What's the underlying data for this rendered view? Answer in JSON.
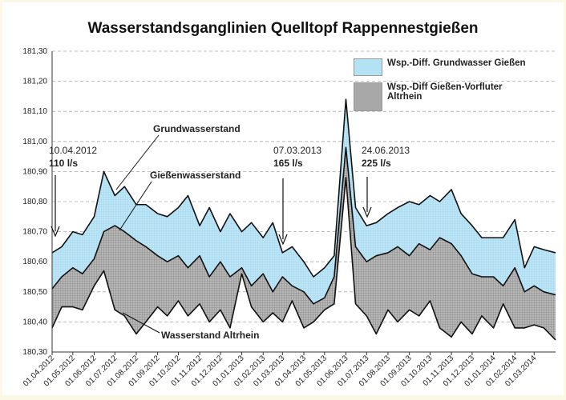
{
  "chart_data": {
    "type": "line",
    "title": "Wasserstandsganglinien Quelltopf Rappennestgießen",
    "x": [
      "01.04.2012",
      "15.04.2012",
      "01.05.2012",
      "15.05.2012",
      "01.06.2012",
      "15.06.2012",
      "01.07.2012",
      "15.07.2012",
      "01.08.2012",
      "15.08.2012",
      "01.09.2012",
      "15.09.2012",
      "01.10.2012",
      "15.10.2012",
      "01.11.2012",
      "15.11.2012",
      "01.12.2012",
      "15.12.2012",
      "01.01.2013",
      "15.01.2013",
      "01.02.2013",
      "15.02.2013",
      "01.03.2013",
      "15.03.2013",
      "01.04.2013",
      "15.04.2013",
      "01.05.2013",
      "15.05.2013",
      "01.06.2013",
      "15.06.2013",
      "01.07.2013",
      "15.07.2013",
      "01.08.2013",
      "15.08.2013",
      "01.09.2013",
      "15.09.2013",
      "01.10.2013",
      "15.10.2013",
      "01.11.2013",
      "15.11.2013",
      "01.12.2013",
      "15.12.2013",
      "01.01.2014",
      "15.01.2014",
      "01.02.2014",
      "15.02.2014",
      "01.03.2014",
      "15.03.2014",
      "01.04.2014"
    ],
    "series": [
      {
        "name": "Grundwasserstand",
        "color": "#111111",
        "values": [
          180.63,
          180.65,
          180.7,
          180.69,
          180.75,
          180.9,
          180.82,
          180.85,
          180.79,
          180.79,
          180.76,
          180.75,
          180.78,
          180.82,
          180.72,
          180.78,
          180.7,
          180.76,
          180.7,
          180.73,
          180.68,
          180.73,
          180.63,
          180.65,
          180.6,
          180.55,
          180.58,
          180.62,
          181.14,
          180.78,
          180.72,
          180.73,
          180.76,
          180.78,
          180.8,
          180.79,
          180.82,
          180.8,
          180.84,
          180.76,
          180.72,
          180.68,
          180.68,
          180.68,
          180.74,
          180.58,
          180.65,
          180.64,
          180.63
        ]
      },
      {
        "name": "Gießenwasserstand",
        "color": "#111111",
        "values": [
          180.51,
          180.55,
          180.58,
          180.56,
          180.61,
          180.7,
          180.72,
          180.7,
          180.67,
          180.65,
          180.62,
          180.6,
          180.62,
          180.58,
          180.62,
          180.55,
          180.6,
          180.55,
          180.58,
          180.52,
          180.56,
          180.5,
          180.55,
          180.52,
          180.5,
          180.46,
          180.48,
          180.55,
          180.98,
          180.65,
          180.6,
          180.62,
          180.63,
          180.65,
          180.62,
          180.66,
          180.64,
          180.68,
          180.66,
          180.62,
          180.56,
          180.55,
          180.55,
          180.52,
          180.58,
          180.5,
          180.52,
          180.5,
          180.49
        ]
      },
      {
        "name": "Wasserstand Altrhein",
        "color": "#111111",
        "values": [
          180.38,
          180.45,
          180.45,
          180.44,
          180.52,
          180.57,
          180.44,
          180.42,
          180.36,
          180.4,
          180.45,
          180.42,
          180.47,
          180.42,
          180.46,
          180.4,
          180.44,
          180.38,
          180.56,
          180.45,
          180.4,
          180.43,
          180.4,
          180.47,
          180.38,
          180.4,
          180.44,
          180.46,
          180.88,
          180.46,
          180.42,
          180.36,
          180.44,
          180.4,
          180.44,
          180.42,
          180.47,
          180.38,
          180.35,
          180.4,
          180.36,
          180.42,
          180.38,
          180.46,
          180.38,
          180.38,
          180.39,
          180.38,
          180.34
        ]
      }
    ],
    "bands": [
      {
        "name": "Wsp.-Diff. Grundwasser Gießen",
        "color": "#b3e2f5"
      },
      {
        "name": "Wsp.-Diff Gießen-Vorfluter Altrhein",
        "color": "#a8a8a8"
      }
    ],
    "annotations": [
      {
        "date": "10.04.2012",
        "flow": "110 l/s"
      },
      {
        "date": "07.03.2013",
        "flow": "165 l/s"
      },
      {
        "date": "24.06.2013",
        "flow": "225 l/s"
      }
    ],
    "xlim": [
      "01.04.2012",
      "01.04.2014"
    ],
    "xticks": [
      "01.04.2012",
      "01.05.2012",
      "01.06.2012",
      "01.07.2012",
      "01.08.2012",
      "01.09.2012",
      "01.10.2012",
      "01.11.2012",
      "01.12.2012",
      "01.01.2013",
      "01.02.2013",
      "01.03.2013",
      "01.04.2013",
      "01.05.2013",
      "01.06.2013",
      "01.07.2013",
      "01.08.2013",
      "01.09.2013",
      "01.10.2013",
      "01.11.2013",
      "01.12.2013",
      "01.01.2014",
      "01.02.2014",
      "01.03.2014"
    ],
    "ylim": [
      180.3,
      181.3
    ],
    "yticks": [
      {
        "value": 180.3,
        "label": "180,30"
      },
      {
        "value": 180.4,
        "label": "180,40"
      },
      {
        "value": 180.5,
        "label": "180,50"
      },
      {
        "value": 180.6,
        "label": "180,60"
      },
      {
        "value": 180.7,
        "label": "180,70"
      },
      {
        "value": 180.8,
        "label": "180,80"
      },
      {
        "value": 180.9,
        "label": "180,90"
      },
      {
        "value": 181.0,
        "label": "181,00"
      },
      {
        "value": 181.1,
        "label": "181,10"
      },
      {
        "value": 181.2,
        "label": "181,20"
      },
      {
        "value": 181.3,
        "label": "181,30"
      }
    ],
    "grid": true
  }
}
